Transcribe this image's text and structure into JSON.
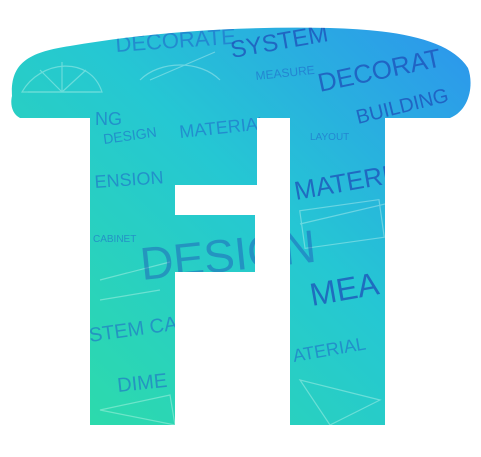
{
  "logo": {
    "name": "ft-monogram-logo",
    "colors": {
      "gradient_start": "#2fe0a0",
      "gradient_mid": "#25c7d3",
      "gradient_end": "#2e8ff0",
      "text_dark": "#1e4fb8",
      "text_mid": "#1f61c9",
      "white": "#ffffff"
    },
    "texture_words": [
      "DECORATE",
      "SYSTEM",
      "MEASURE",
      "DECORAT",
      "BUILDING",
      "NG",
      "DESIGN",
      "MATERIAL",
      "LAYOUT",
      "ENSION",
      "MATERI",
      "CABINET",
      "DESIGN",
      "MEA",
      "STEM CABIN",
      "ATERIAL",
      "DIME"
    ]
  }
}
